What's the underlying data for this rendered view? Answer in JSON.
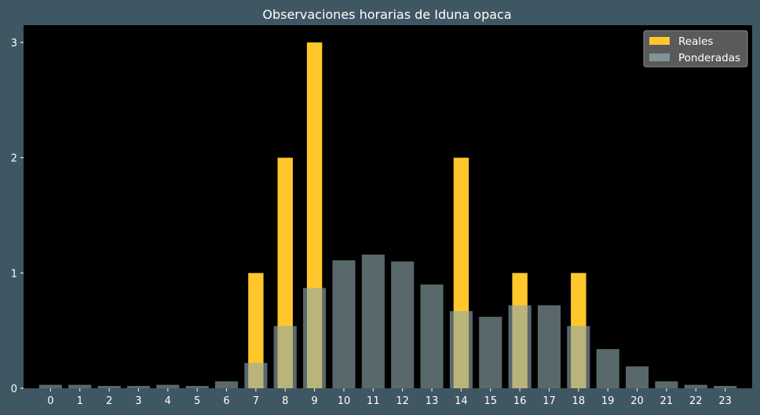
{
  "chart_data": {
    "type": "bar",
    "title": "Observaciones horarias de Iduna opaca",
    "xlabel": "",
    "ylabel": "",
    "categories": [
      "0",
      "1",
      "2",
      "3",
      "4",
      "5",
      "6",
      "7",
      "8",
      "9",
      "10",
      "11",
      "12",
      "13",
      "14",
      "15",
      "16",
      "17",
      "18",
      "19",
      "20",
      "21",
      "22",
      "23"
    ],
    "ylim": [
      0,
      3.15
    ],
    "yticks": [
      0,
      1,
      2,
      3
    ],
    "grid": false,
    "legend_position": "top-right",
    "series": [
      {
        "name": "Reales",
        "color": "#ffc72c",
        "values": [
          0,
          0,
          0,
          0,
          0,
          0,
          0,
          1,
          2,
          3,
          0,
          0,
          0,
          0,
          2,
          0,
          1,
          0,
          1,
          0,
          0,
          0,
          0,
          0
        ]
      },
      {
        "name": "Ponderadas",
        "color": "#8fa8ad",
        "values": [
          0.03,
          0.03,
          0.02,
          0.02,
          0.03,
          0.02,
          0.06,
          0.22,
          0.54,
          0.87,
          1.11,
          1.16,
          1.1,
          0.9,
          0.67,
          0.62,
          0.72,
          0.72,
          0.54,
          0.34,
          0.19,
          0.06,
          0.03,
          0.02
        ]
      }
    ]
  }
}
